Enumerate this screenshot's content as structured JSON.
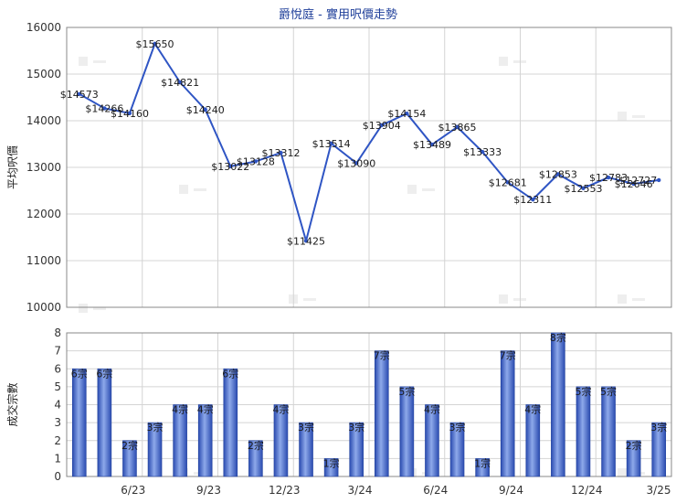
{
  "title": "爵悅庭 - 實用呎價走勢",
  "colors": {
    "line": "#2f55c4",
    "bar_dark": "#2a4bb0",
    "bar_light": "#8ea9ea",
    "grid": "#d4d4d4",
    "title": "#1f3f9a"
  },
  "chart_data": [
    {
      "type": "line",
      "ylabel": "平均呎價",
      "ylim": [
        10000,
        16000
      ],
      "yticks": [
        10000,
        11000,
        12000,
        13000,
        14000,
        15000,
        16000
      ],
      "values": [
        14573,
        14266,
        14160,
        15650,
        14821,
        14240,
        13022,
        13128,
        13312,
        11425,
        13514,
        13090,
        13904,
        14154,
        13489,
        13865,
        13333,
        12681,
        12311,
        12853,
        12553,
        12783,
        12646,
        12727
      ],
      "labels": [
        "$14573",
        "$14266",
        "$14160",
        "$15650",
        "$14821",
        "$14240",
        "$13022",
        "$13128",
        "$13312",
        "$11425",
        "$13514",
        "$13090",
        "$13904",
        "$14154",
        "$13489",
        "$13865",
        "$13333",
        "$12681",
        "$12311",
        "$12853",
        "$12553",
        "$12783",
        "$12646",
        "$12727"
      ]
    },
    {
      "type": "bar",
      "ylabel": "成交宗數",
      "ylim": [
        0,
        8
      ],
      "yticks": [
        0,
        1,
        2,
        3,
        4,
        5,
        6,
        7,
        8
      ],
      "values": [
        6,
        6,
        2,
        3,
        4,
        4,
        6,
        2,
        4,
        3,
        1,
        3,
        7,
        5,
        4,
        3,
        1,
        7,
        4,
        8,
        5,
        5,
        2,
        3
      ],
      "labels": [
        "6宗",
        "6宗",
        "2宗",
        "3宗",
        "4宗",
        "4宗",
        "6宗",
        "2宗",
        "4宗",
        "3宗",
        "1宗",
        "3宗",
        "7宗",
        "5宗",
        "4宗",
        "3宗",
        "1宗",
        "7宗",
        "4宗",
        "8宗",
        "5宗",
        "5宗",
        "2宗",
        "3宗"
      ],
      "xticks": [
        "6/23",
        "9/23",
        "12/23",
        "3/24",
        "6/24",
        "9/24",
        "12/24",
        "3/25"
      ]
    }
  ]
}
